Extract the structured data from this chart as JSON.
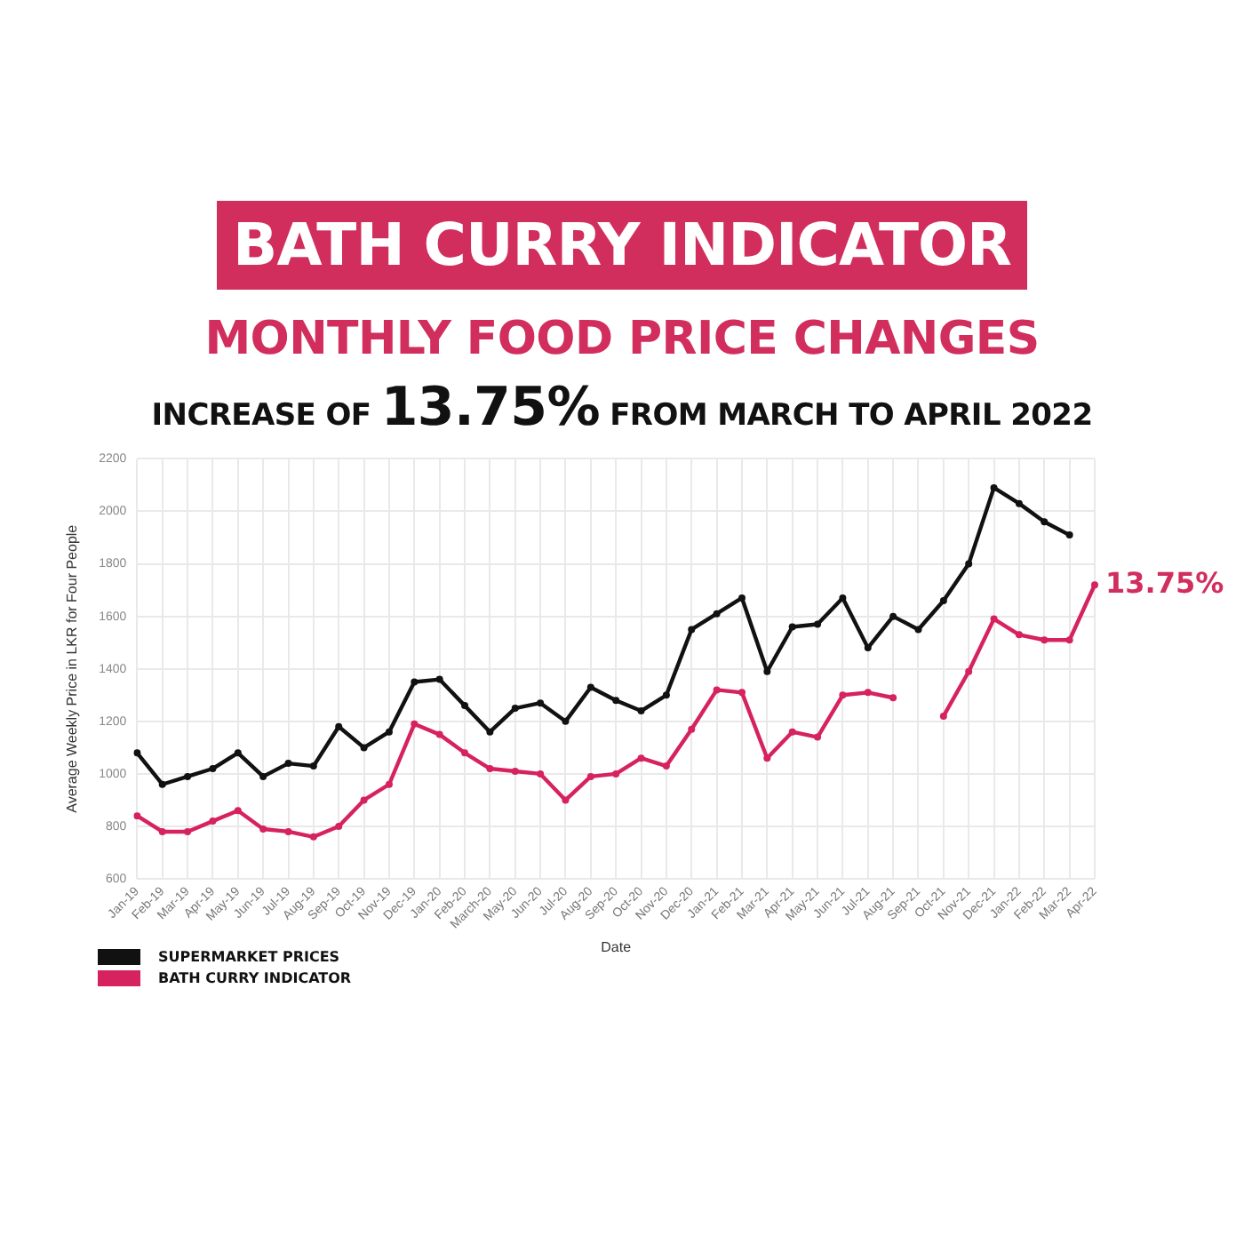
{
  "chart_data": {
    "type": "line",
    "title": "BATH CURRY INDICATOR",
    "subtitle": "MONTHLY FOOD PRICE CHANGES",
    "xlabel": "Date",
    "ylabel": "Average Weekly Price in LKR for Four People",
    "categories": [
      "Jan-19",
      "Feb-19",
      "Mar-19",
      "Apr-19",
      "May-19",
      "Jun-19",
      "Jul-19",
      "Aug-19",
      "Sep-19",
      "Oct-19",
      "Nov-19",
      "Dec-19",
      "Jan-20",
      "Feb-20",
      "March-20",
      "May-20",
      "Jun-20",
      "Jul-20",
      "Aug-20",
      "Sep-20",
      "Oct-20",
      "Nov-20",
      "Dec-20",
      "Jan-21",
      "Feb-21",
      "Mar-21",
      "Apr-21",
      "May-21",
      "Jun-21",
      "Jul-21",
      "Aug-21",
      "Sep-21",
      "Oct-21",
      "Nov-21",
      "Dec-21",
      "Jan-22",
      "Feb-22",
      "Mar-22",
      "Apr-22"
    ],
    "series": [
      {
        "name": "SUPERMARKET PRICES",
        "color": "#111111",
        "values": [
          1080,
          960,
          990,
          1020,
          1080,
          990,
          1040,
          1030,
          1180,
          1100,
          1160,
          1350,
          1360,
          1260,
          1160,
          1250,
          1270,
          1200,
          1330,
          1280,
          1240,
          1300,
          1550,
          1610,
          1670,
          1390,
          1560,
          1570,
          1670,
          1480,
          1600,
          1550,
          1660,
          1800,
          2090,
          2030,
          1960,
          1910,
          null
        ]
      },
      {
        "name": "BATH CURRY INDICATOR",
        "color": "#d6225e",
        "values": [
          840,
          780,
          780,
          820,
          860,
          790,
          780,
          760,
          800,
          900,
          960,
          1190,
          1150,
          1080,
          1020,
          1010,
          1000,
          900,
          990,
          1000,
          1060,
          1030,
          1170,
          1320,
          1310,
          1060,
          1160,
          1140,
          1300,
          1310,
          1290,
          null,
          1220,
          1390,
          1590,
          1530,
          1510,
          1510,
          1720
        ]
      }
    ],
    "ylim": [
      600,
      2200
    ],
    "yticks": [
      600,
      800,
      1000,
      1200,
      1400,
      1600,
      1800,
      2000,
      2200
    ],
    "grid": true,
    "legend": "bottom left",
    "marker": "circle",
    "annotations": [
      "INCREASE OF 13.75% FROM MARCH TO APRIL 2022",
      {
        "text": "13.75%",
        "x": "Apr-22",
        "y": 1720
      }
    ]
  }
}
